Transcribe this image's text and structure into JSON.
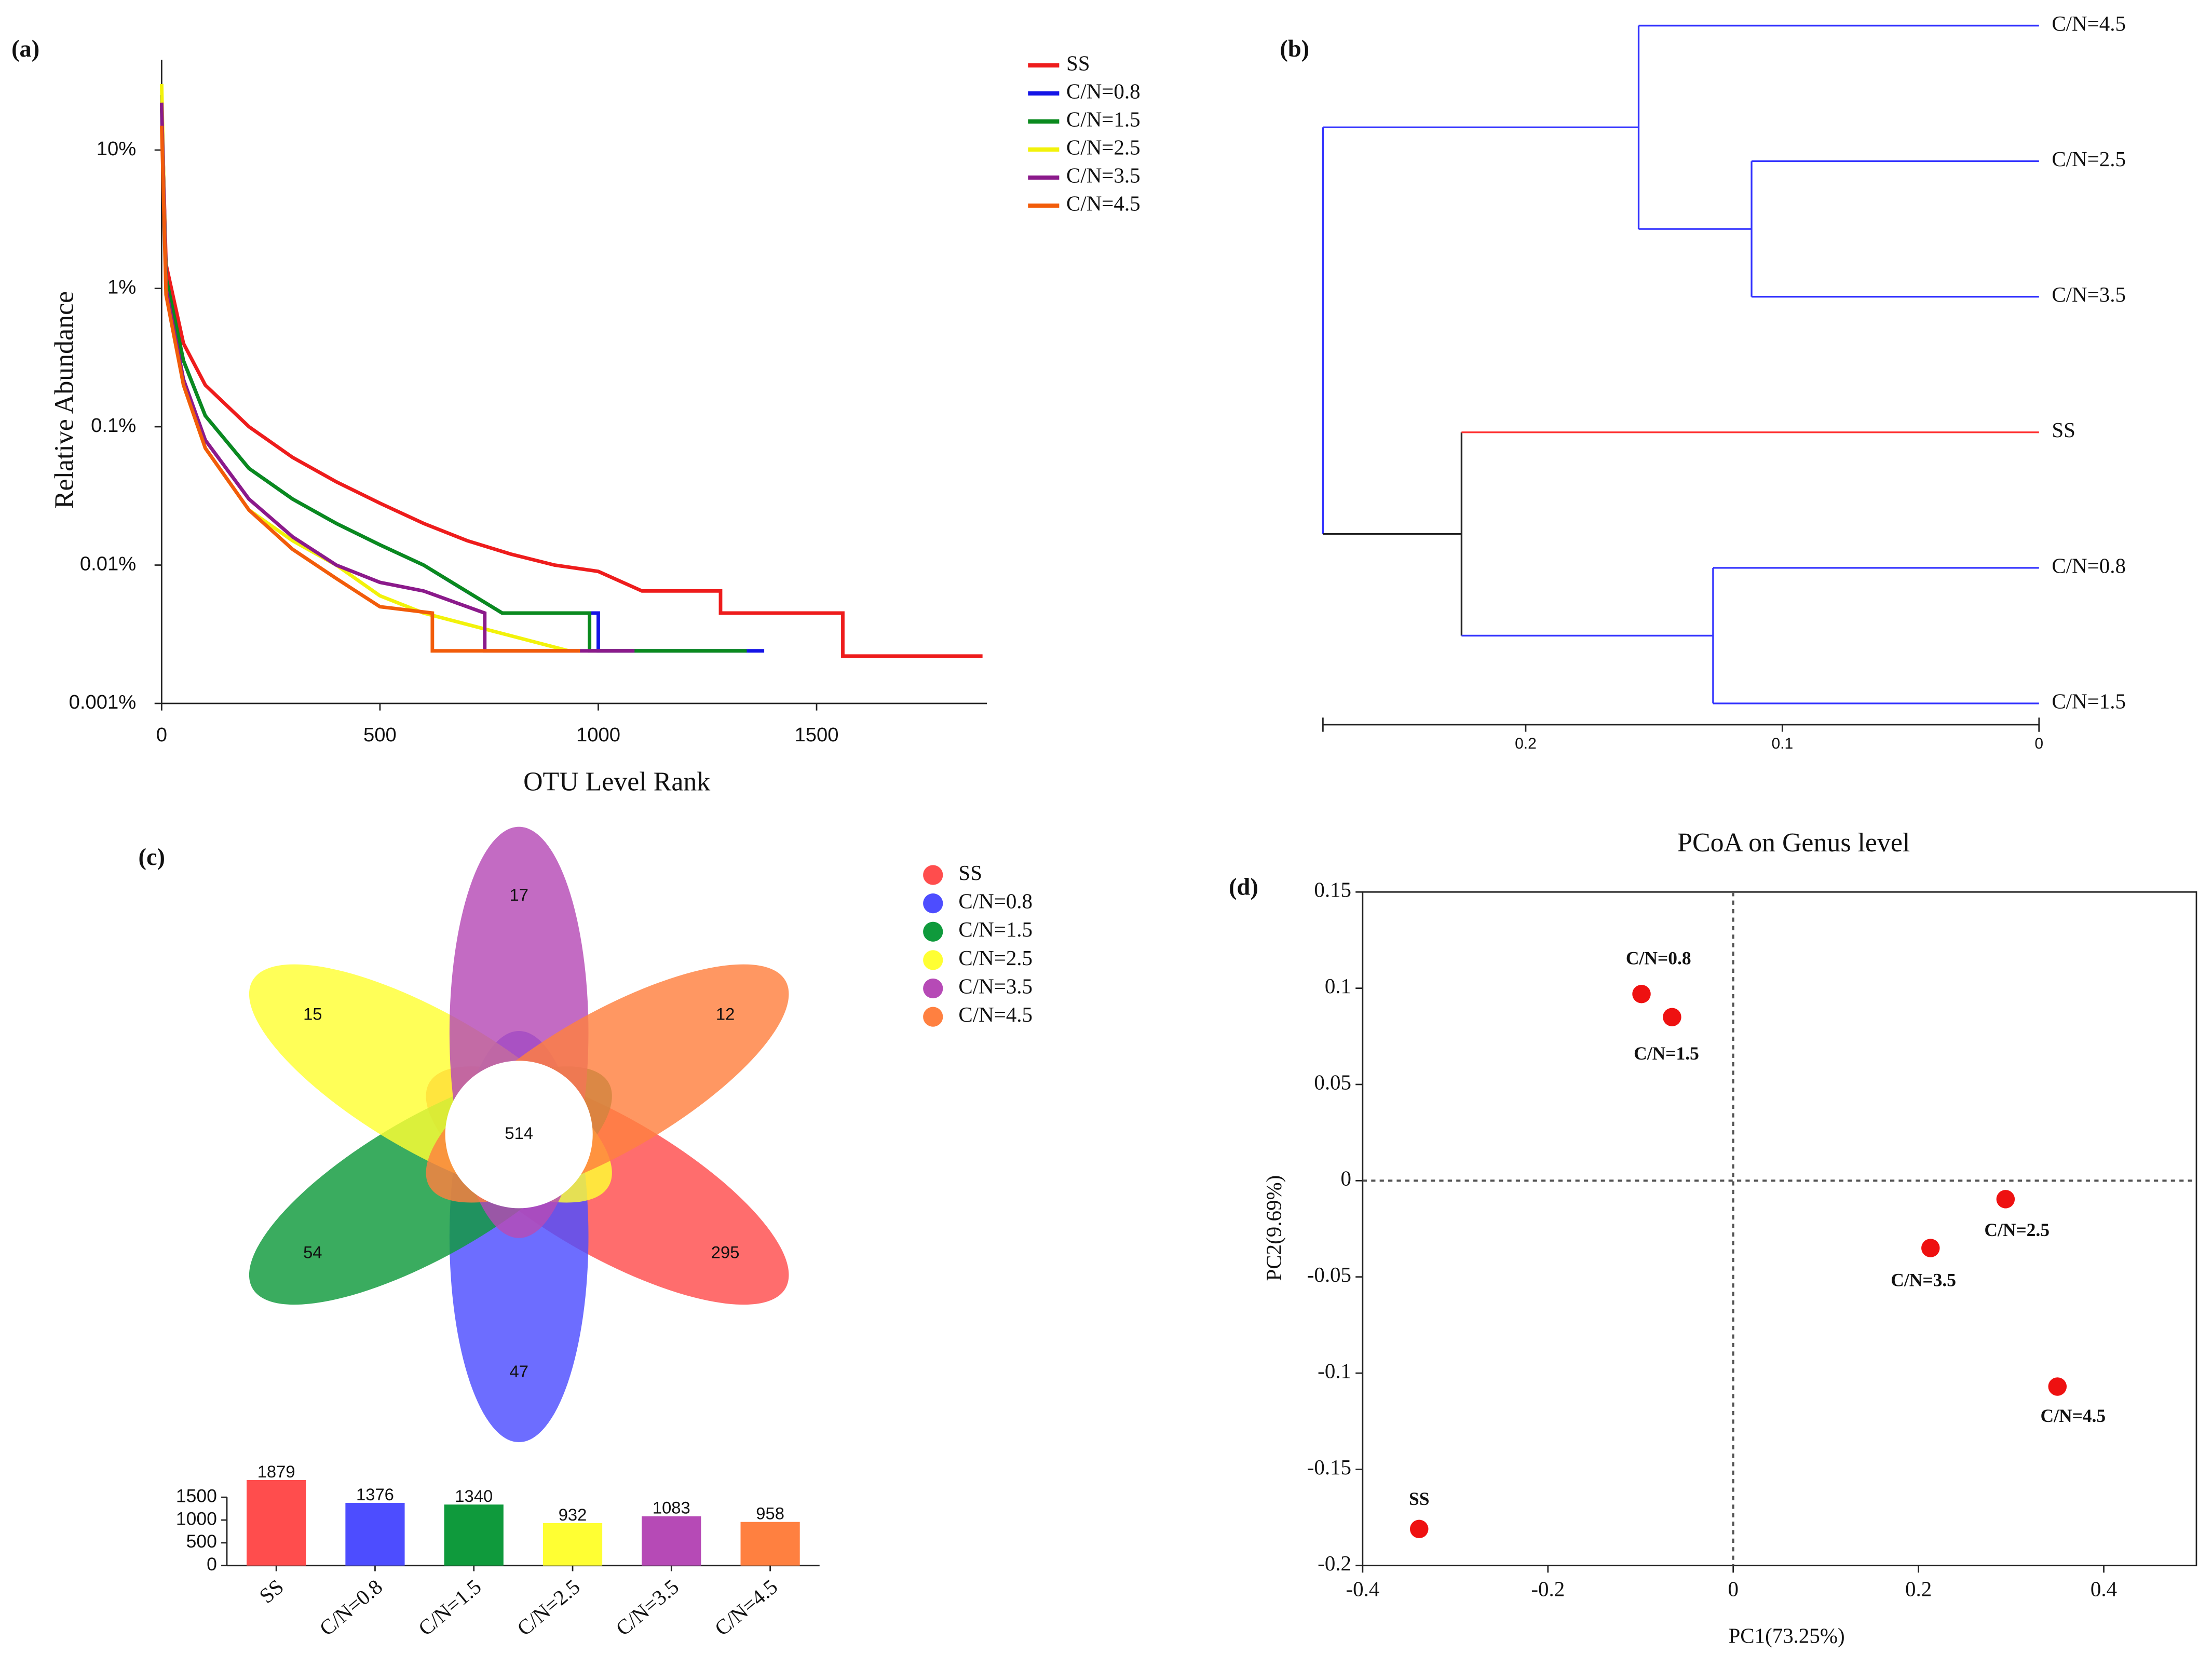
{
  "chart_data": [
    {
      "type": "line",
      "panel": "(a)",
      "log_y": true,
      "xlabel": "OTU Level Rank",
      "ylabel": "Relative Abundance",
      "xlim": [
        0,
        1890
      ],
      "xticks": [
        0,
        500,
        1000,
        1500
      ],
      "ylim": [
        0.001,
        45
      ],
      "yticks": [
        {
          "value": 10,
          "label": "10%"
        },
        {
          "value": 1,
          "label": "1%"
        },
        {
          "value": 0.1,
          "label": "0.1%"
        },
        {
          "value": 0.01,
          "label": "0.01%"
        },
        {
          "value": 0.001,
          "label": "0.001%"
        }
      ],
      "series": [
        {
          "name": "SS",
          "color": "#ee1c1c",
          "x": [
            0,
            10,
            50,
            100,
            200,
            300,
            400,
            500,
            600,
            700,
            800,
            900,
            1000,
            1100,
            1280,
            1280,
            1560,
            1560,
            1880
          ],
          "values": [
            22,
            1.5,
            0.4,
            0.2,
            0.1,
            0.06,
            0.04,
            0.028,
            0.02,
            0.015,
            0.012,
            0.01,
            0.009,
            0.0065,
            0.0065,
            0.0045,
            0.0045,
            0.0022,
            0.0022
          ]
        },
        {
          "name": "C/N=0.8",
          "color": "#1414e6",
          "x": [
            0,
            10,
            50,
            100,
            200,
            300,
            400,
            500,
            600,
            680,
            780,
            1000,
            1000,
            1380
          ],
          "values": [
            25,
            1.2,
            0.3,
            0.12,
            0.05,
            0.03,
            0.02,
            0.014,
            0.01,
            0.007,
            0.0045,
            0.0045,
            0.0024,
            0.0024
          ]
        },
        {
          "name": "C/N=1.5",
          "color": "#0a8a1e",
          "x": [
            0,
            10,
            50,
            100,
            200,
            300,
            400,
            500,
            600,
            780,
            980,
            980,
            1340
          ],
          "values": [
            20,
            1.2,
            0.3,
            0.12,
            0.05,
            0.03,
            0.02,
            0.014,
            0.01,
            0.0045,
            0.0045,
            0.0024,
            0.0024
          ]
        },
        {
          "name": "C/N=2.5",
          "color": "#f2f20a",
          "x": [
            0,
            10,
            50,
            100,
            200,
            300,
            400,
            500,
            600,
            932
          ],
          "values": [
            30,
            1,
            0.2,
            0.07,
            0.025,
            0.015,
            0.01,
            0.006,
            0.0045,
            0.0024
          ]
        },
        {
          "name": "C/N=3.5",
          "color": "#8b1a8b",
          "x": [
            0,
            10,
            50,
            100,
            200,
            300,
            400,
            500,
            600,
            740,
            740,
            1083
          ],
          "values": [
            22,
            1,
            0.22,
            0.08,
            0.03,
            0.016,
            0.01,
            0.0075,
            0.0065,
            0.0045,
            0.0024,
            0.0024
          ]
        },
        {
          "name": "C/N=4.5",
          "color": "#f25c0a",
          "x": [
            0,
            10,
            50,
            100,
            200,
            300,
            400,
            500,
            620,
            620,
            958
          ],
          "values": [
            15,
            0.9,
            0.2,
            0.07,
            0.025,
            0.013,
            0.008,
            0.005,
            0.0045,
            0.0024,
            0.0024
          ]
        }
      ]
    },
    {
      "type": "dendrogram",
      "panel": "(b)",
      "leaves": [
        "C/N=4.5",
        "C/N=2.5",
        "C/N=3.5",
        "SS",
        "C/N=0.8",
        "C/N=1.5"
      ],
      "leaf_colors": [
        "#3333ff",
        "#3333ff",
        "#3333ff",
        "#ff3333",
        "#3333ff",
        "#3333ff"
      ],
      "merges": [
        {
          "children": [
            1,
            2
          ],
          "height": 0.112,
          "color": "#3333ff"
        },
        {
          "children": [
            0,
            6
          ],
          "height": 0.156,
          "color": "#3333ff"
        },
        {
          "children": [
            4,
            5
          ],
          "height": 0.127,
          "color": "#3333ff"
        },
        {
          "children": [
            3,
            8
          ],
          "height": 0.225,
          "color": "#222222"
        },
        {
          "children": [
            7,
            9
          ],
          "height": 0.279,
          "color": "#3333ff"
        }
      ],
      "xlim": [
        0.279,
        0
      ],
      "xticks": [
        0.2,
        0.1,
        0
      ]
    },
    {
      "type": "venn",
      "panel": "(c)",
      "shared": 514,
      "sets": [
        {
          "name": "SS",
          "color": "#ff4d4d",
          "unique": 295
        },
        {
          "name": "C/N=0.8",
          "color": "#4d4dff",
          "unique": 47
        },
        {
          "name": "C/N=1.5",
          "color": "#0f9a3c",
          "unique": 54
        },
        {
          "name": "C/N=2.5",
          "color": "#ffff33",
          "unique": 15
        },
        {
          "name": "C/N=3.5",
          "color": "#b64ab6",
          "unique": 17
        },
        {
          "name": "C/N=4.5",
          "color": "#ff8040",
          "unique": 12
        }
      ]
    },
    {
      "type": "bar",
      "categories": [
        "SS",
        "C/N=0.8",
        "C/N=1.5",
        "C/N=2.5",
        "C/N=3.5",
        "C/N=4.5"
      ],
      "values": [
        1879,
        1376,
        1340,
        932,
        1083,
        958
      ],
      "colors": [
        "#ff4d4d",
        "#4d4dff",
        "#0f9a3c",
        "#ffff33",
        "#b64ab6",
        "#ff8040"
      ],
      "ylim": [
        0,
        1900
      ],
      "yticks": [
        0,
        500,
        1000,
        1500
      ]
    },
    {
      "type": "scatter",
      "panel": "(d)",
      "title": "PCoA on Genus level",
      "xlabel": "PC1(73.25%)",
      "ylabel": "PC2(9.69%)",
      "labels": [
        "C/N=0.8",
        "C/N=1.5",
        "C/N=2.5",
        "C/N=3.5",
        "C/N=4.5",
        "SS"
      ],
      "x": [
        -0.099,
        -0.066,
        0.294,
        0.213,
        0.35,
        -0.339
      ],
      "values": [
        0.097,
        0.085,
        -0.0096,
        -0.035,
        -0.107,
        -0.181
      ],
      "color": "#ee1111",
      "zero_lines": true,
      "xlim": [
        -0.4,
        0.5
      ],
      "xticks": [
        -0.4,
        -0.2,
        0,
        0.2,
        0.4
      ],
      "ylim": [
        -0.2,
        0.15
      ],
      "yticks": [
        -0.2,
        -0.15,
        -0.1,
        -0.05,
        0,
        0.05,
        0.1,
        0.15
      ]
    }
  ]
}
